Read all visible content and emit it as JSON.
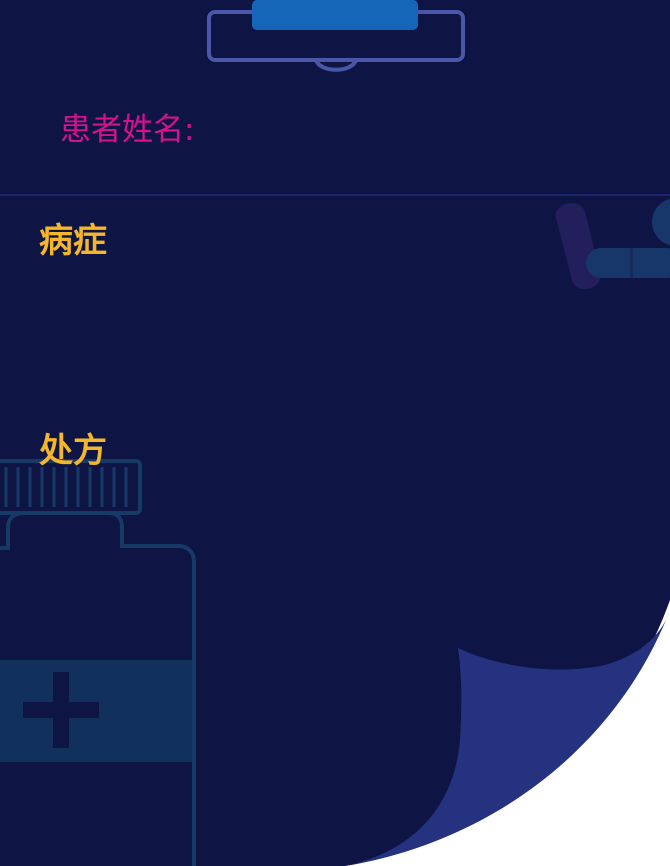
{
  "form": {
    "patient_name_label": "患者姓名:",
    "symptoms_title": "病症",
    "prescription_title": "处方"
  },
  "colors": {
    "background": "#0e1545",
    "patient_label": "#d3128e",
    "section_title": "#f5b727",
    "clip_outline": "#4a56a8",
    "clip_tab": "#1565b8",
    "page_curl": "#253280",
    "bottle_outline": "#163a66",
    "bottle_label": "#12305c"
  },
  "icons": {
    "clipboard_clip": "clipboard-clip-icon",
    "pill": "pill-icon",
    "medicine_bottle": "medicine-bottle-icon"
  }
}
